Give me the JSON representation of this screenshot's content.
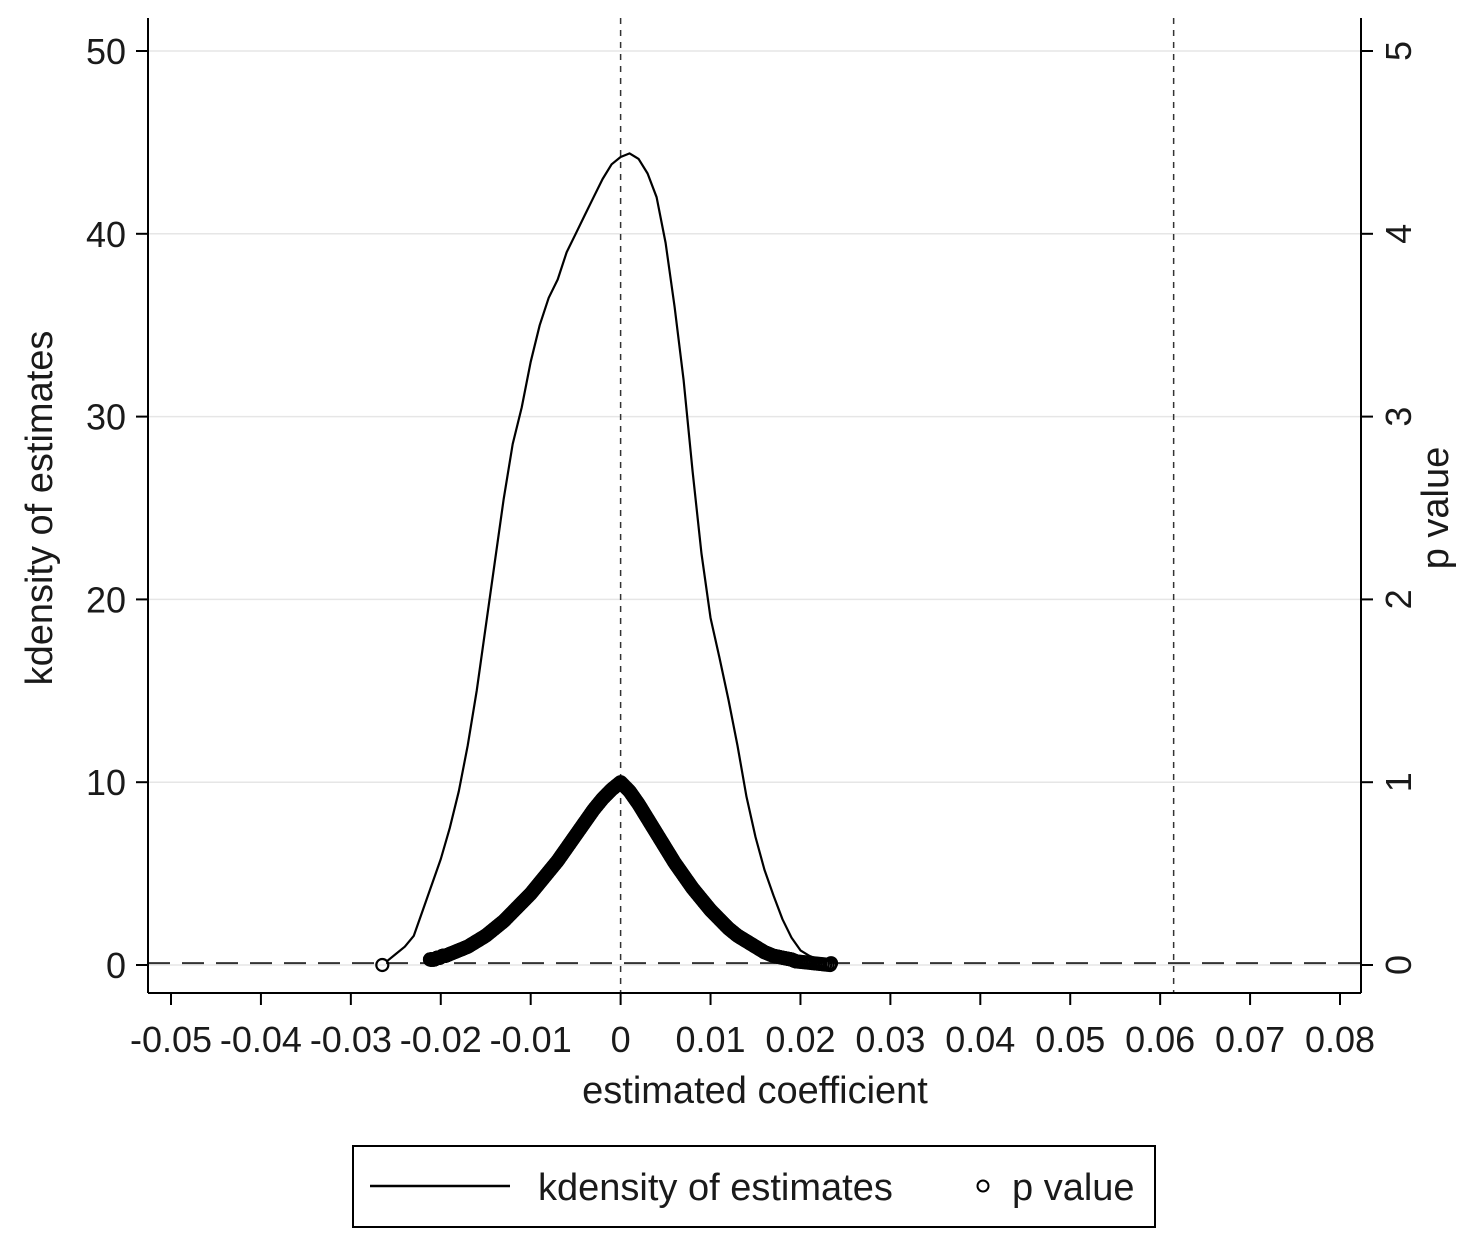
{
  "chart_data": {
    "type": "line",
    "x_axis": {
      "label": "estimated coefficient",
      "min": -0.05,
      "max": 0.08,
      "ticks": [
        -0.05,
        -0.04,
        -0.03,
        -0.02,
        -0.01,
        0,
        0.01,
        0.02,
        0.03,
        0.04,
        0.05,
        0.06,
        0.07,
        0.08
      ],
      "tick_labels": [
        "-0.05",
        "-0.04",
        "-0.03",
        "-0.02",
        "-0.01",
        "0",
        "0.01",
        "0.02",
        "0.03",
        "0.04",
        "0.05",
        "0.06",
        "0.07",
        "0.08"
      ]
    },
    "y_axis_left": {
      "label": "kdensity of estimates",
      "min": 0,
      "max": 50,
      "ticks": [
        0,
        10,
        20,
        30,
        40,
        50
      ],
      "tick_labels": [
        "0",
        "10",
        "20",
        "30",
        "40",
        "50"
      ]
    },
    "y_axis_right": {
      "label": "p value",
      "min": 0,
      "max": 5,
      "ticks": [
        0,
        1,
        2,
        3,
        4,
        5
      ],
      "tick_labels": [
        "0",
        "1",
        "2",
        "3",
        "4",
        "5"
      ]
    },
    "grid": "horizontal",
    "reference_lines": {
      "vertical": [
        0,
        0.0615
      ],
      "horizontal_pvalue": 0.01
    },
    "series": [
      {
        "name": "kdensity of estimates",
        "kind": "line",
        "axis": "left",
        "color": "#000000",
        "x": [
          -0.026,
          -0.025,
          -0.024,
          -0.023,
          -0.022,
          -0.021,
          -0.02,
          -0.019,
          -0.018,
          -0.017,
          -0.016,
          -0.015,
          -0.014,
          -0.013,
          -0.012,
          -0.011,
          -0.01,
          -0.009,
          -0.008,
          -0.007,
          -0.006,
          -0.005,
          -0.004,
          -0.003,
          -0.002,
          -0.001,
          0.0,
          0.001,
          0.002,
          0.003,
          0.004,
          0.005,
          0.006,
          0.007,
          0.008,
          0.009,
          0.01,
          0.011,
          0.012,
          0.013,
          0.014,
          0.015,
          0.016,
          0.017,
          0.018,
          0.019,
          0.02,
          0.021,
          0.022,
          0.023
        ],
        "y": [
          0.2,
          0.6,
          1.0,
          1.6,
          3.0,
          4.4,
          5.8,
          7.5,
          9.5,
          12.0,
          15.0,
          18.5,
          22.0,
          25.5,
          28.5,
          30.5,
          33.0,
          35.0,
          36.5,
          37.5,
          39.0,
          40.0,
          41.0,
          42.0,
          43.0,
          43.8,
          44.2,
          44.4,
          44.1,
          43.3,
          42.0,
          39.5,
          36.0,
          32.0,
          27.0,
          22.5,
          19.0,
          16.8,
          14.5,
          12.0,
          9.2,
          7.0,
          5.2,
          3.8,
          2.5,
          1.5,
          0.8,
          0.5,
          0.3,
          0.3
        ]
      },
      {
        "name": "p value",
        "kind": "scatter",
        "axis": "right",
        "color": "#000000",
        "x": [
          -0.0265,
          -0.0212,
          -0.021,
          -0.0207,
          -0.0204,
          -0.0201,
          -0.0198,
          -0.0195,
          -0.019,
          -0.018,
          -0.017,
          -0.016,
          -0.015,
          -0.014,
          -0.013,
          -0.012,
          -0.011,
          -0.01,
          -0.009,
          -0.008,
          -0.007,
          -0.006,
          -0.005,
          -0.004,
          -0.003,
          -0.002,
          -0.001,
          0.0,
          0.001,
          0.002,
          0.003,
          0.004,
          0.005,
          0.006,
          0.007,
          0.008,
          0.009,
          0.01,
          0.011,
          0.012,
          0.013,
          0.014,
          0.015,
          0.016,
          0.017,
          0.018,
          0.019,
          0.0195,
          0.0233,
          0.0234
        ],
        "y": [
          0.0,
          0.03,
          0.03,
          0.03,
          0.04,
          0.04,
          0.05,
          0.05,
          0.06,
          0.08,
          0.1,
          0.13,
          0.16,
          0.2,
          0.24,
          0.29,
          0.34,
          0.39,
          0.45,
          0.51,
          0.57,
          0.64,
          0.71,
          0.78,
          0.85,
          0.91,
          0.96,
          1.0,
          0.95,
          0.88,
          0.8,
          0.72,
          0.64,
          0.56,
          0.49,
          0.42,
          0.36,
          0.3,
          0.25,
          0.2,
          0.16,
          0.13,
          0.1,
          0.07,
          0.05,
          0.04,
          0.03,
          0.02,
          0.0,
          0.01
        ]
      }
    ],
    "legend": {
      "position": "bottom",
      "items": [
        "kdensity of estimates",
        "p value"
      ]
    }
  }
}
